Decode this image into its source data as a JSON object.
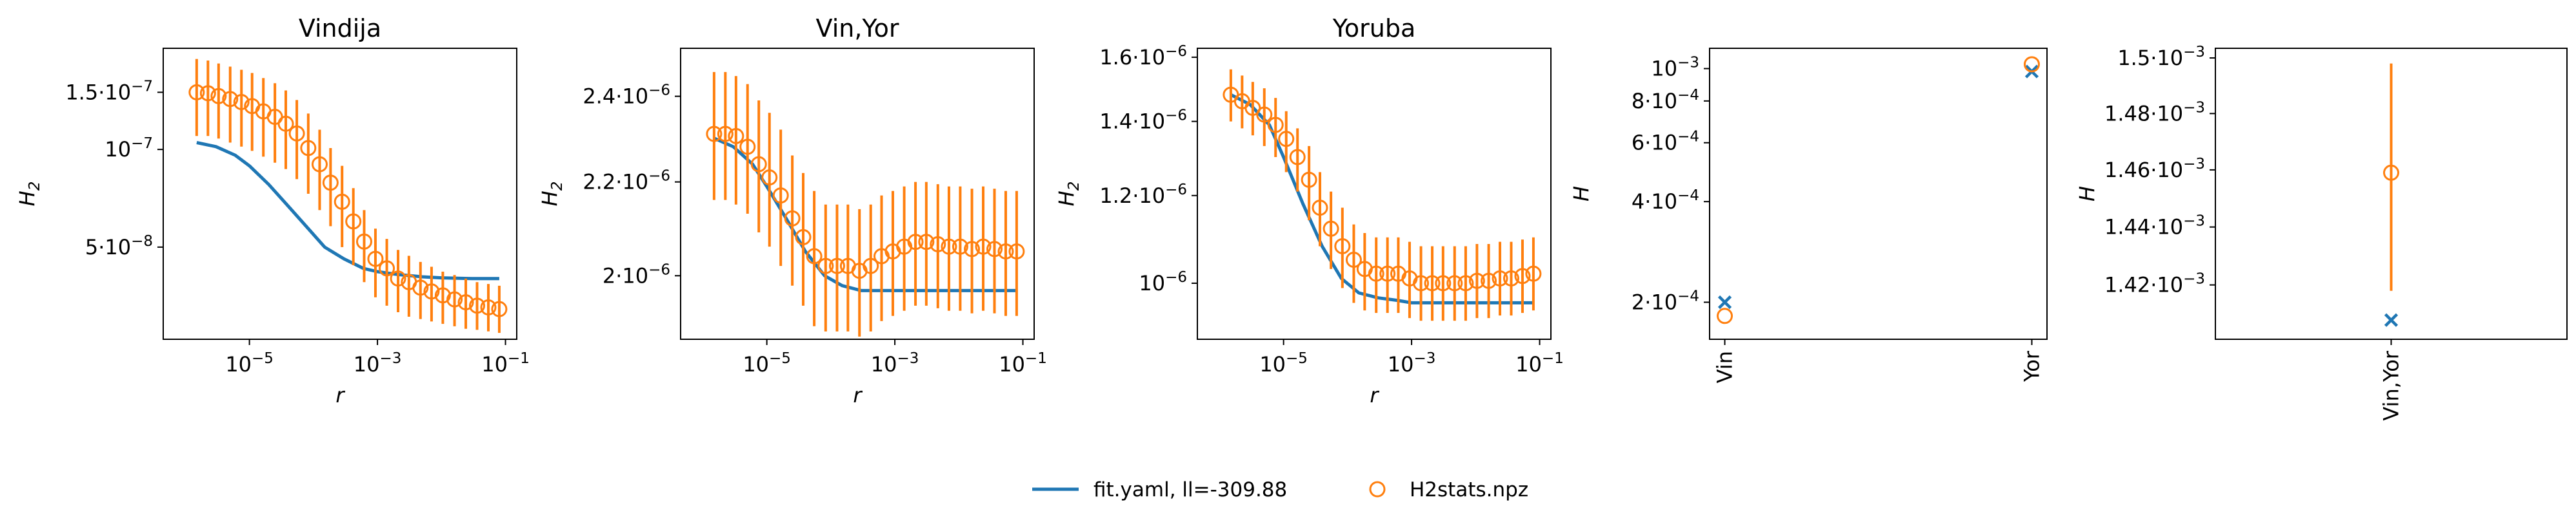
{
  "colors": {
    "model": "#1f77b4",
    "data": "#ff7f0e"
  },
  "legend": {
    "position": "bottom-center",
    "items": [
      {
        "label": "fit.yaml, ll=-309.88",
        "kind": "line",
        "color": "#1f77b4"
      },
      {
        "label": "H2stats.npz",
        "kind": "circle",
        "color": "#ff7f0e"
      }
    ]
  },
  "chart_data": [
    {
      "type": "line",
      "title": "Vindija",
      "xlabel": "r",
      "ylabel": "H_2",
      "xscale": "log",
      "yscale": "log",
      "xlim": [
        4.5e-07,
        0.15
      ],
      "ylim": [
        2.6e-08,
        2.05e-07
      ],
      "xticks": [
        {
          "v": 1e-05,
          "b": "10",
          "e": "−5"
        },
        {
          "v": 0.001,
          "b": "10",
          "e": "−3"
        },
        {
          "v": 0.1,
          "b": "10",
          "e": "−1"
        }
      ],
      "yticks": [
        {
          "v": 5e-08,
          "b": "5·10",
          "e": "−8"
        },
        {
          "v": 1e-07,
          "b": "10",
          "e": "−7"
        },
        {
          "v": 1.5e-07,
          "b": "1.5·10",
          "e": "−7"
        }
      ],
      "series": [
        {
          "kind": "line",
          "x": [
            1.5e-06,
            3e-06,
            6e-06,
            1e-05,
            2e-05,
            4e-05,
            8e-05,
            0.00015,
            0.0003,
            0.0006,
            0.001,
            0.002,
            0.005,
            0.01,
            0.03,
            0.08
          ],
          "y": [
            1.05e-07,
            1.02e-07,
            9.6e-08,
            8.9e-08,
            7.8e-08,
            6.7e-08,
            5.75e-08,
            5e-08,
            4.6e-08,
            4.3e-08,
            4.2e-08,
            4.12e-08,
            4.05e-08,
            4.02e-08,
            4e-08,
            4e-08
          ]
        },
        {
          "kind": "errorbar",
          "x": [
            1.5e-06,
            2.25e-06,
            3.3e-06,
            5e-06,
            7.5e-06,
            1.1e-05,
            1.65e-05,
            2.5e-05,
            3.7e-05,
            5.5e-05,
            8.3e-05,
            0.000125,
            0.000185,
            0.00028,
            0.00042,
            0.00062,
            0.00093,
            0.0014,
            0.0021,
            0.0031,
            0.0047,
            0.007,
            0.0105,
            0.016,
            0.024,
            0.036,
            0.054,
            0.08
          ],
          "y": [
            1.5e-07,
            1.49e-07,
            1.46e-07,
            1.43e-07,
            1.4e-07,
            1.36e-07,
            1.31e-07,
            1.26e-07,
            1.2e-07,
            1.12e-07,
            1.01e-07,
            9e-08,
            7.9e-08,
            6.9e-08,
            6e-08,
            5.2e-08,
            4.6e-08,
            4.3e-08,
            4e-08,
            3.9e-08,
            3.75e-08,
            3.65e-08,
            3.55e-08,
            3.45e-08,
            3.38e-08,
            3.3e-08,
            3.26e-08,
            3.22e-08
          ],
          "lo": [
            1.1e-07,
            1.1e-07,
            1.08e-07,
            1.05e-07,
            1.02e-07,
            9.9e-08,
            9.5e-08,
            9.1e-08,
            8.7e-08,
            8.1e-08,
            7.3e-08,
            6.5e-08,
            5.8e-08,
            5e-08,
            4.4e-08,
            3.9e-08,
            3.5e-08,
            3.3e-08,
            3.15e-08,
            3.05e-08,
            3e-08,
            2.95e-08,
            2.9e-08,
            2.85e-08,
            2.8e-08,
            2.78e-08,
            2.75e-08,
            2.72e-08
          ],
          "hi": [
            1.9e-07,
            1.88e-07,
            1.84e-07,
            1.8e-07,
            1.76e-07,
            1.72e-07,
            1.66e-07,
            1.6e-07,
            1.52e-07,
            1.42e-07,
            1.29e-07,
            1.15e-07,
            1.01e-07,
            8.9e-08,
            7.6e-08,
            6.5e-08,
            5.7e-08,
            5.3e-08,
            4.9e-08,
            4.7e-08,
            4.5e-08,
            4.35e-08,
            4.2e-08,
            4.1e-08,
            4e-08,
            3.9e-08,
            3.85e-08,
            3.8e-08
          ]
        }
      ]
    },
    {
      "type": "line",
      "title": "Vin,Yor",
      "xlabel": "r",
      "ylabel": "H_2",
      "xscale": "log",
      "yscale": "log",
      "xlim": [
        4.5e-07,
        0.15
      ],
      "ylim": [
        1.875e-06,
        2.52e-06
      ],
      "xticks": [
        {
          "v": 1e-05,
          "b": "10",
          "e": "−5"
        },
        {
          "v": 0.001,
          "b": "10",
          "e": "−3"
        },
        {
          "v": 0.1,
          "b": "10",
          "e": "−1"
        }
      ],
      "yticks": [
        {
          "v": 2e-06,
          "b": "2·10",
          "e": "−6"
        },
        {
          "v": 2.2e-06,
          "b": "2.2·10",
          "e": "−6"
        },
        {
          "v": 2.4e-06,
          "b": "2.4·10",
          "e": "−6"
        }
      ],
      "series": [
        {
          "kind": "line",
          "x": [
            1.5e-06,
            3e-06,
            6e-06,
            1e-05,
            2e-05,
            4e-05,
            8e-05,
            0.00015,
            0.0003,
            0.0006,
            0.001,
            0.003,
            0.01,
            0.03,
            0.08
          ],
          "y": [
            2.3e-06,
            2.28e-06,
            2.24e-06,
            2.19e-06,
            2.12e-06,
            2.05e-06,
            2e-06,
            1.98e-06,
            1.97e-06,
            1.97e-06,
            1.97e-06,
            1.97e-06,
            1.97e-06,
            1.97e-06,
            1.97e-06
          ]
        },
        {
          "kind": "errorbar",
          "x": [
            1.5e-06,
            2.25e-06,
            3.3e-06,
            5e-06,
            7.5e-06,
            1.1e-05,
            1.65e-05,
            2.5e-05,
            3.7e-05,
            5.5e-05,
            8.3e-05,
            0.000125,
            0.000185,
            0.00028,
            0.00042,
            0.00062,
            0.00093,
            0.0014,
            0.0021,
            0.0031,
            0.0047,
            0.007,
            0.0105,
            0.016,
            0.024,
            0.036,
            0.054,
            0.08
          ],
          "y": [
            2.31e-06,
            2.31e-06,
            2.305e-06,
            2.28e-06,
            2.24e-06,
            2.21e-06,
            2.17e-06,
            2.12e-06,
            2.08e-06,
            2.04e-06,
            2.02e-06,
            2.02e-06,
            2.02e-06,
            2.01e-06,
            2.02e-06,
            2.04e-06,
            2.05e-06,
            2.06e-06,
            2.07e-06,
            2.07e-06,
            2.065e-06,
            2.06e-06,
            2.06e-06,
            2.055e-06,
            2.06e-06,
            2.055e-06,
            2.05e-06,
            2.05e-06
          ],
          "lo": [
            2.16e-06,
            2.16e-06,
            2.15e-06,
            2.13e-06,
            2.09e-06,
            2.06e-06,
            2.02e-06,
            1.98e-06,
            1.94e-06,
            1.9e-06,
            1.89e-06,
            1.89e-06,
            1.89e-06,
            1.88e-06,
            1.89e-06,
            1.91e-06,
            1.92e-06,
            1.93e-06,
            1.94e-06,
            1.94e-06,
            1.935e-06,
            1.93e-06,
            1.93e-06,
            1.925e-06,
            1.93e-06,
            1.925e-06,
            1.92e-06,
            1.92e-06
          ],
          "hi": [
            2.46e-06,
            2.46e-06,
            2.45e-06,
            2.43e-06,
            2.39e-06,
            2.36e-06,
            2.32e-06,
            2.26e-06,
            2.22e-06,
            2.18e-06,
            2.15e-06,
            2.15e-06,
            2.15e-06,
            2.14e-06,
            2.15e-06,
            2.17e-06,
            2.18e-06,
            2.19e-06,
            2.2e-06,
            2.2e-06,
            2.195e-06,
            2.19e-06,
            2.19e-06,
            2.185e-06,
            2.19e-06,
            2.185e-06,
            2.18e-06,
            2.18e-06
          ]
        }
      ]
    },
    {
      "type": "line",
      "title": "Yoruba",
      "xlabel": "r",
      "ylabel": "H_2",
      "xscale": "log",
      "yscale": "log",
      "xlim": [
        4.5e-07,
        0.15
      ],
      "ylim": [
        8.9e-07,
        1.63e-06
      ],
      "xticks": [
        {
          "v": 1e-05,
          "b": "10",
          "e": "−5"
        },
        {
          "v": 0.001,
          "b": "10",
          "e": "−3"
        },
        {
          "v": 0.1,
          "b": "10",
          "e": "−1"
        }
      ],
      "yticks": [
        {
          "v": 1e-06,
          "b": "10",
          "e": "−6"
        },
        {
          "v": 1.2e-06,
          "b": "1.2·10",
          "e": "−6"
        },
        {
          "v": 1.4e-06,
          "b": "1.4·10",
          "e": "−6"
        },
        {
          "v": 1.6e-06,
          "b": "1.6·10",
          "e": "−6"
        }
      ],
      "series": [
        {
          "kind": "line",
          "x": [
            1.5e-06,
            3e-06,
            6e-06,
            1e-05,
            2e-05,
            4e-05,
            8e-05,
            0.00015,
            0.0003,
            0.0006,
            0.001,
            0.003,
            0.01,
            0.03,
            0.08
          ],
          "y": [
            1.48e-06,
            1.45e-06,
            1.39e-06,
            1.3e-06,
            1.18e-06,
            1.08e-06,
            1.01e-06,
            9.8e-07,
            9.7e-07,
            9.65e-07,
            9.6e-07,
            9.6e-07,
            9.6e-07,
            9.6e-07,
            9.6e-07
          ]
        },
        {
          "kind": "errorbar",
          "x": [
            1.5e-06,
            2.25e-06,
            3.3e-06,
            5e-06,
            7.5e-06,
            1.1e-05,
            1.65e-05,
            2.5e-05,
            3.7e-05,
            5.5e-05,
            8.3e-05,
            0.000125,
            0.000185,
            0.00028,
            0.00042,
            0.00062,
            0.00093,
            0.0014,
            0.0021,
            0.0031,
            0.0047,
            0.007,
            0.0105,
            0.016,
            0.024,
            0.036,
            0.054,
            0.08
          ],
          "y": [
            1.48e-06,
            1.46e-06,
            1.44e-06,
            1.42e-06,
            1.39e-06,
            1.35e-06,
            1.3e-06,
            1.24e-06,
            1.17e-06,
            1.12e-06,
            1.08e-06,
            1.05e-06,
            1.03e-06,
            1.02e-06,
            1.02e-06,
            1.02e-06,
            1.01e-06,
            1e-06,
            1e-06,
            1e-06,
            1e-06,
            1e-06,
            1.005e-06,
            1.005e-06,
            1.01e-06,
            1.01e-06,
            1.015e-06,
            1.02e-06
          ],
          "lo": [
            1.4e-06,
            1.38e-06,
            1.36e-06,
            1.33e-06,
            1.3e-06,
            1.26e-06,
            1.21e-06,
            1.14e-06,
            1.08e-06,
            1.03e-06,
            9.9e-07,
            9.6e-07,
            9.45e-07,
            9.4e-07,
            9.4e-07,
            9.4e-07,
            9.3e-07,
            9.25e-07,
            9.25e-07,
            9.25e-07,
            9.25e-07,
            9.25e-07,
            9.3e-07,
            9.3e-07,
            9.35e-07,
            9.35e-07,
            9.4e-07,
            9.45e-07
          ],
          "hi": [
            1.56e-06,
            1.54e-06,
            1.52e-06,
            1.5e-06,
            1.47e-06,
            1.43e-06,
            1.38e-06,
            1.33e-06,
            1.26e-06,
            1.21e-06,
            1.17e-06,
            1.13e-06,
            1.11e-06,
            1.1e-06,
            1.1e-06,
            1.1e-06,
            1.09e-06,
            1.08e-06,
            1.08e-06,
            1.08e-06,
            1.08e-06,
            1.08e-06,
            1.085e-06,
            1.085e-06,
            1.09e-06,
            1.09e-06,
            1.095e-06,
            1.1e-06
          ]
        }
      ]
    },
    {
      "type": "scatter",
      "title": "",
      "xlabel": "",
      "ylabel": "H",
      "xscale": "category",
      "yscale": "log",
      "categories": [
        "Vin",
        "Yor"
      ],
      "ylim": [
        0.000155,
        0.00115
      ],
      "yticks": [
        {
          "v": 0.0002,
          "b": "2·10",
          "e": "−4"
        },
        {
          "v": 0.0004,
          "b": "4·10",
          "e": "−4"
        },
        {
          "v": 0.0006,
          "b": "6·10",
          "e": "−4"
        },
        {
          "v": 0.0008,
          "b": "8·10",
          "e": "−4"
        },
        {
          "v": 0.001,
          "b": "10",
          "e": "−3"
        }
      ],
      "series": [
        {
          "kind": "marker_x",
          "values": [
            0.0002,
            0.00098
          ]
        },
        {
          "kind": "errorbar",
          "values": [
            0.000182,
            0.00103
          ],
          "lo": [
            0.000182,
            0.00103
          ],
          "hi": [
            0.000182,
            0.00103
          ]
        }
      ]
    },
    {
      "type": "scatter",
      "title": "",
      "xlabel": "",
      "ylabel": "H",
      "xscale": "category",
      "yscale": "log",
      "categories": [
        "Vin,Yor"
      ],
      "ylim": [
        0.0014015,
        0.0015035
      ],
      "yticks": [
        {
          "v": 0.00142,
          "b": "1.42·10",
          "e": "−3"
        },
        {
          "v": 0.00144,
          "b": "1.44·10",
          "e": "−3"
        },
        {
          "v": 0.00146,
          "b": "1.46·10",
          "e": "−3"
        },
        {
          "v": 0.00148,
          "b": "1.48·10",
          "e": "−3"
        },
        {
          "v": 0.0015,
          "b": "1.5·10",
          "e": "−3"
        }
      ],
      "series": [
        {
          "kind": "marker_x",
          "values": [
            0.001408
          ]
        },
        {
          "kind": "errorbar",
          "values": [
            0.001459
          ],
          "lo": [
            0.001418
          ],
          "hi": [
            0.001498
          ]
        }
      ]
    }
  ]
}
